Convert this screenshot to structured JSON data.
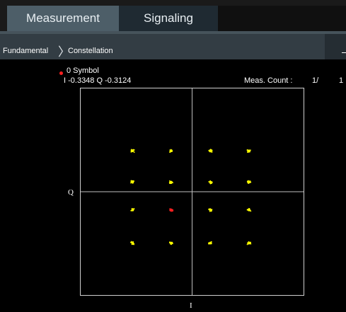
{
  "tabs": [
    {
      "label": "Measurement",
      "active": true
    },
    {
      "label": "Signaling",
      "active": false
    }
  ],
  "breadcrumb": {
    "root": "Fundamental",
    "separator": "〉",
    "current": "Constellation"
  },
  "marker": {
    "symbol_label": "0 Symbol",
    "iq_readout": "I -0.3348 Q -0.3124",
    "color": "#ff2020"
  },
  "meas_count": {
    "label": "Meas. Count :",
    "value": "1/",
    "total": "1"
  },
  "plot": {
    "q_axis_label": "Q",
    "i_axis_label": "I",
    "point_color": "#ffff00",
    "marker_point_color": "#ff2020"
  },
  "chart_data": {
    "type": "scatter",
    "title": "",
    "xlabel": "I",
    "ylabel": "Q",
    "xlim": [
      -1,
      1
    ],
    "ylim": [
      -1,
      1
    ],
    "grid": false,
    "points": [
      {
        "i": -0.955,
        "q": 0.705
      },
      {
        "i": -0.335,
        "q": 0.705
      },
      {
        "i": 0.295,
        "q": 0.705
      },
      {
        "i": 0.915,
        "q": 0.705
      },
      {
        "i": -0.955,
        "q": 0.165
      },
      {
        "i": -0.335,
        "q": 0.165
      },
      {
        "i": 0.295,
        "q": 0.165
      },
      {
        "i": 0.915,
        "q": 0.165
      },
      {
        "i": -0.955,
        "q": -0.315
      },
      {
        "i": -0.3348,
        "q": -0.3124,
        "marker": true
      },
      {
        "i": 0.295,
        "q": -0.315
      },
      {
        "i": 0.915,
        "q": -0.315
      },
      {
        "i": -0.955,
        "q": -0.885
      },
      {
        "i": -0.335,
        "q": -0.885
      },
      {
        "i": 0.295,
        "q": -0.885
      },
      {
        "i": 0.915,
        "q": -0.885
      }
    ]
  }
}
